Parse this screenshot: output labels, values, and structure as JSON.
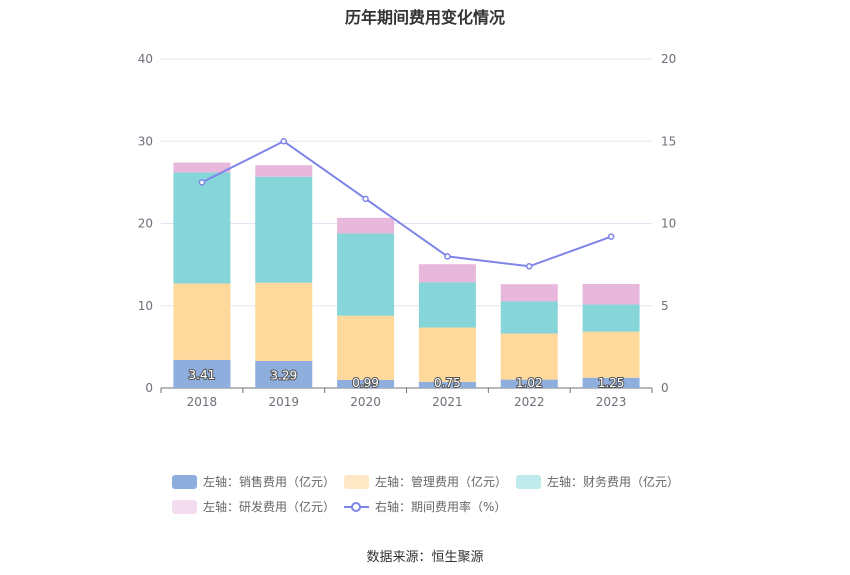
{
  "title": "历年期间费用变化情况",
  "source": "数据来源：恒生聚源",
  "chart_data": {
    "type": "bar",
    "stacked": true,
    "categories": [
      "2018",
      "2019",
      "2020",
      "2021",
      "2022",
      "2023"
    ],
    "left_axis": {
      "ylim": [
        0,
        40
      ],
      "ticks": [
        0,
        10,
        20,
        30,
        40
      ]
    },
    "right_axis": {
      "ylim": [
        0,
        20
      ],
      "ticks": [
        0,
        5,
        10,
        15,
        20
      ]
    },
    "grid": true,
    "legend_position": "bottom",
    "series": [
      {
        "name": "左轴：销售费用（亿元）",
        "axis": "left",
        "type": "bar",
        "color": "#8eaedd",
        "values": [
          3.41,
          3.29,
          0.99,
          0.75,
          1.02,
          1.25
        ],
        "show_labels": true
      },
      {
        "name": "左轴：管理费用（亿元）",
        "axis": "left",
        "type": "bar",
        "color": "#fed99b",
        "values": [
          9.3,
          9.5,
          7.8,
          6.6,
          5.6,
          5.6
        ]
      },
      {
        "name": "左轴：财务费用（亿元）",
        "axis": "left",
        "type": "bar",
        "color": "#86d5d9",
        "values": [
          13.5,
          12.9,
          10.0,
          5.5,
          3.9,
          3.3
        ]
      },
      {
        "name": "左轴：研发费用（亿元）",
        "axis": "left",
        "type": "bar",
        "color": "#e8b8dc",
        "values": [
          1.2,
          1.4,
          1.9,
          2.2,
          2.1,
          2.5
        ]
      },
      {
        "name": "右轴：期间费用率（%）",
        "axis": "right",
        "type": "line",
        "color": "#7e84e8",
        "values": [
          12.5,
          15.0,
          11.5,
          8.0,
          7.4,
          9.2
        ]
      }
    ]
  },
  "legend_colors": [
    "#8eaedd",
    "#fee8c5",
    "#bfeaec",
    "#f3ddee"
  ]
}
